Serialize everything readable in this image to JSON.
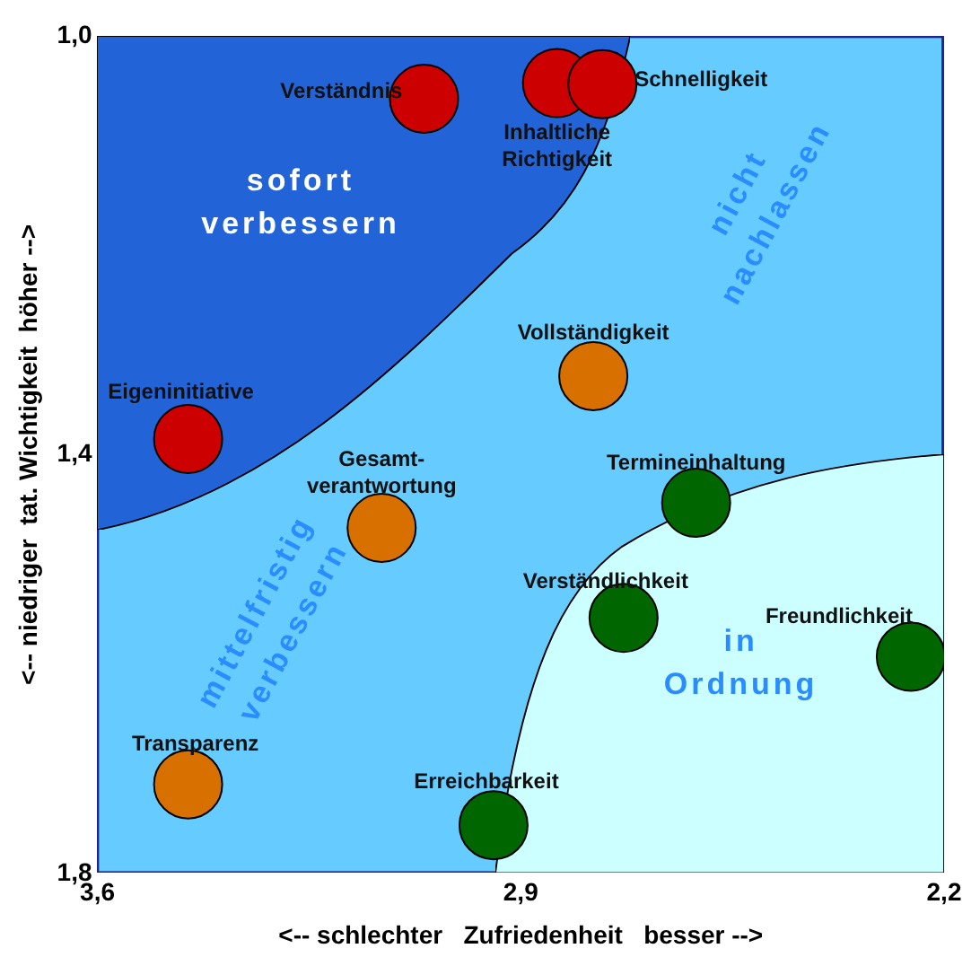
{
  "chart_data": {
    "type": "scatter",
    "xlabel": "<-- schlechter   Zufriedenheit   besser -->",
    "ylabel": "<-- niedriger  tat. Wichtigkeit  höher -->",
    "xlim": [
      3.6,
      2.2
    ],
    "xticks": [
      {
        "value": 3.6,
        "label": "3,6"
      },
      {
        "value": 2.9,
        "label": "2,9"
      },
      {
        "value": 2.2,
        "label": "2,2"
      }
    ],
    "ylim": [
      1.8,
      1.0
    ],
    "yticks": [
      {
        "value": 1.0,
        "label": "1,0"
      },
      {
        "value": 1.4,
        "label": "1,4"
      },
      {
        "value": 1.8,
        "label": "1,8"
      }
    ],
    "grid": false,
    "legend": false,
    "marker": "circle",
    "series": [
      {
        "color": "#cc0000",
        "x": [
          3.06,
          2.84,
          2.765,
          3.45
        ],
        "values": [
          1.06,
          1.045,
          1.046,
          1.385
        ]
      },
      {
        "color": "#d87000",
        "x": [
          2.78,
          3.13,
          3.45
        ],
        "values": [
          1.325,
          1.47,
          1.715
        ]
      },
      {
        "color": "#006600",
        "x": [
          2.61,
          2.73,
          2.255,
          2.945
        ],
        "values": [
          1.446,
          1.556,
          1.593,
          1.754
        ]
      }
    ],
    "annotations": [
      {
        "text": "Verständnis",
        "x": 3.06,
        "y": 1.06
      },
      {
        "text": "Inhaltliche\nRichtigkeit",
        "x": 2.84,
        "y": 1.045
      },
      {
        "text": "Schnelligkeit",
        "x": 2.765,
        "y": 1.046
      },
      {
        "text": "Eigeninitiative",
        "x": 3.45,
        "y": 1.385
      },
      {
        "text": "Vollständigkeit",
        "x": 2.78,
        "y": 1.325
      },
      {
        "text": "Gesamt-\nverantwortung",
        "x": 3.13,
        "y": 1.47
      },
      {
        "text": "Transparenz",
        "x": 3.45,
        "y": 1.715
      },
      {
        "text": "Termineinhaltung",
        "x": 2.61,
        "y": 1.446
      },
      {
        "text": "Verständlichkeit",
        "x": 2.73,
        "y": 1.556
      },
      {
        "text": "Freundlichkeit",
        "x": 2.255,
        "y": 1.593
      },
      {
        "text": "Erreichbarkeit",
        "x": 2.945,
        "y": 1.754
      },
      "sofort\nverbessern",
      "nicht\nnachlassen",
      "mittelfristig\nverbessern",
      "in\nOrdnung"
    ]
  }
}
